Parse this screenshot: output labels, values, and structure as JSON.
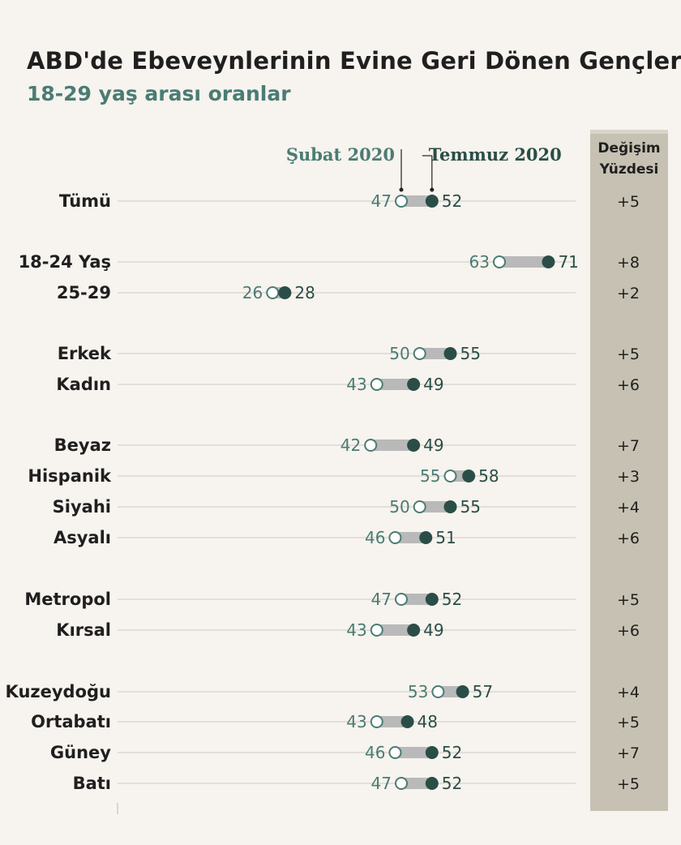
{
  "title": "ABD'de Ebeveynlerinin Evine Geri Dönen Gençler",
  "subtitle": "18-29 yaş arası oranlar",
  "colors": {
    "background": "#f7f3ee",
    "feb_marker": "#4a7c74",
    "jul_marker": "#2a4e47",
    "connector": "#b9b9b9",
    "gridline": "#cfcac4",
    "change_column": "#c6c1b2",
    "label_text": "#1f1f1f"
  },
  "chart_data": {
    "type": "dumbbell",
    "series": [
      {
        "name": "Şubat 2020",
        "values": [
          47,
          63,
          26,
          50,
          43,
          42,
          55,
          50,
          46,
          47,
          43,
          53,
          43,
          46,
          47
        ]
      },
      {
        "name": "Temmuz 2020",
        "values": [
          52,
          71,
          28,
          55,
          49,
          49,
          58,
          55,
          51,
          52,
          49,
          57,
          48,
          52,
          52
        ]
      }
    ],
    "categories": [
      "Tümü",
      "18-24 Yaş",
      "25-29",
      "Erkek",
      "Kadın",
      "Beyaz",
      "Hispanik",
      "Siyahi",
      "Asyalı",
      "Metropol",
      "Kırsal",
      "Kuzeydoğu",
      "Ortabatı",
      "Güney",
      "Batı"
    ],
    "groups": [
      [
        0
      ],
      [
        1,
        2
      ],
      [
        3,
        4
      ],
      [
        5,
        6,
        7,
        8
      ],
      [
        9,
        10
      ],
      [
        11,
        12,
        13,
        14
      ]
    ],
    "change_header": [
      "Değişim",
      "Yüzdesi"
    ],
    "change": [
      "+5",
      "+8",
      "+2",
      "+5",
      "+6",
      "+7",
      "+3",
      "+4",
      "+6",
      "+5",
      "+6",
      "+4",
      "+5",
      "+7",
      "+5"
    ],
    "legend_placement": "top",
    "grid": true
  }
}
